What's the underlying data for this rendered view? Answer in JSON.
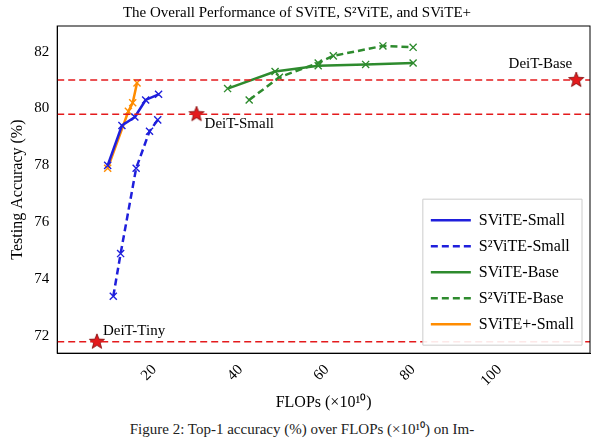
{
  "chart_data": {
    "type": "line",
    "title": "The Overall Performance of SViTE, S²ViTE, and SViTE+",
    "x_label": "FLOPs (×10¹⁰)",
    "y_label": "Testing Accuracy (%)",
    "caption": "Figure 2: Top-1 accuracy (%) over FLOPs (×10¹⁰) on Im-",
    "xlim": [
      -2.5,
      121
    ],
    "xticks": [
      20,
      40,
      60,
      80,
      100
    ],
    "ylim": [
      71.4,
      82.9
    ],
    "yticks": [
      72,
      74,
      76,
      78,
      80,
      82
    ],
    "grid": false,
    "legend": "lower right",
    "series": [
      {
        "name": "SViTE-Small",
        "color": "#1f1fdc",
        "line_style": "solid",
        "marker": "x",
        "x": [
          9.2,
          12.5,
          15.5,
          18.0,
          21.0
        ],
        "values": [
          78.0,
          79.4,
          79.7,
          80.3,
          80.5
        ]
      },
      {
        "name": "S²ViTE-Small",
        "color": "#1f1fdc",
        "line_style": "dashed",
        "marker": "x",
        "x": [
          10.5,
          12.2,
          15.8,
          18.9,
          20.8
        ],
        "values": [
          73.4,
          74.9,
          77.9,
          79.2,
          79.6
        ]
      },
      {
        "name": "SViTE-Base",
        "color": "#2e8b2e",
        "line_style": "solid",
        "marker": "x",
        "x": [
          37.0,
          48.0,
          58.0,
          69.0,
          80.0
        ],
        "values": [
          80.7,
          81.3,
          81.5,
          81.55,
          81.6
        ]
      },
      {
        "name": "S²ViTE-Base",
        "color": "#2e8b2e",
        "line_style": "dashed",
        "marker": "x",
        "x": [
          42.0,
          49.0,
          58.0,
          61.5,
          73.0,
          80.0
        ],
        "values": [
          80.3,
          81.1,
          81.6,
          81.85,
          82.2,
          82.15
        ]
      },
      {
        "name": "SViTE+-Small",
        "color": "#ff8c00",
        "line_style": "solid",
        "marker": "x",
        "x": [
          9.2,
          14.0,
          15.0,
          16.0
        ],
        "values": [
          77.9,
          79.9,
          80.2,
          80.9
        ]
      }
    ],
    "references": [
      {
        "name": "DeiT-Tiny",
        "x": 6.7,
        "y": 71.8,
        "color": "#e41a1c",
        "marker": "star",
        "line_style": "dashed"
      },
      {
        "name": "DeiT-Small",
        "x": 29.8,
        "y": 79.8,
        "color": "#e41a1c",
        "marker": "star",
        "line_style": "dashed"
      },
      {
        "name": "DeiT-Base",
        "x": 117.8,
        "y": 81.0,
        "color": "#e41a1c",
        "marker": "star",
        "line_style": "dashed"
      }
    ]
  }
}
